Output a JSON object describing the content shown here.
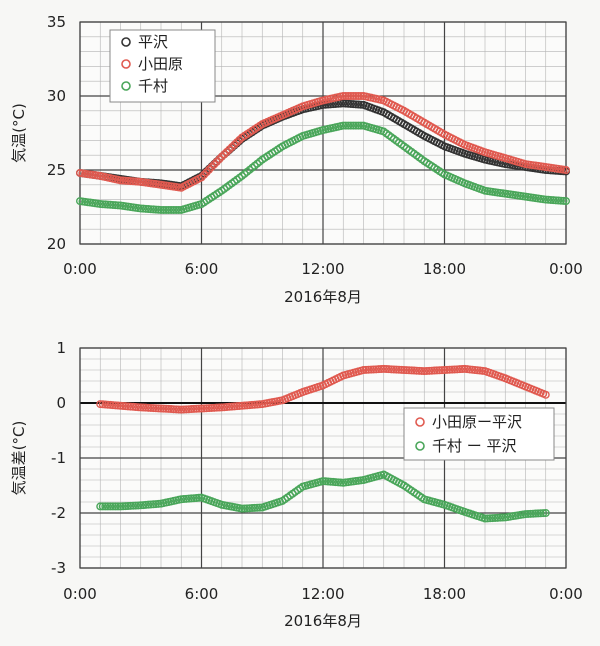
{
  "chart_data": [
    {
      "type": "scatter",
      "title": "",
      "xlabel": "2016年8月",
      "ylabel": "気温(°C)",
      "xlim": [
        0,
        24
      ],
      "ylim": [
        20,
        35
      ],
      "x_ticks": [
        0,
        6,
        12,
        18,
        24
      ],
      "x_tick_labels": [
        "0:00",
        "6:00",
        "12:00",
        "18:00",
        "0:00"
      ],
      "y_ticks": [
        20,
        25,
        30,
        35
      ],
      "y_tick_labels": [
        "20",
        "25",
        "30",
        "35"
      ],
      "grid": true,
      "legend_position": "top-left",
      "series": [
        {
          "name": "平沢",
          "color": "#333333",
          "x": [
            0,
            1,
            2,
            3,
            4,
            5,
            6,
            7,
            8,
            9,
            10,
            11,
            12,
            13,
            14,
            15,
            16,
            17,
            18,
            19,
            20,
            21,
            22,
            23,
            24
          ],
          "y": [
            24.8,
            24.6,
            24.4,
            24.2,
            24.1,
            23.9,
            24.6,
            25.9,
            27.1,
            28.0,
            28.6,
            29.1,
            29.4,
            29.5,
            29.4,
            28.9,
            28.1,
            27.3,
            26.6,
            26.1,
            25.7,
            25.4,
            25.2,
            25.0,
            24.9
          ]
        },
        {
          "name": "小田原",
          "color": "#e05a50",
          "x": [
            0,
            1,
            2,
            3,
            4,
            5,
            6,
            7,
            8,
            9,
            10,
            11,
            12,
            13,
            14,
            15,
            16,
            17,
            18,
            19,
            20,
            21,
            22,
            23,
            24
          ],
          "y": [
            24.8,
            24.6,
            24.3,
            24.2,
            24.0,
            23.8,
            24.5,
            25.9,
            27.2,
            28.1,
            28.7,
            29.3,
            29.7,
            30.0,
            30.0,
            29.7,
            29.0,
            28.2,
            27.4,
            26.7,
            26.2,
            25.8,
            25.4,
            25.2,
            25.0
          ]
        },
        {
          "name": "千村",
          "color": "#4aa65a",
          "x": [
            0,
            1,
            2,
            3,
            4,
            5,
            6,
            7,
            8,
            9,
            10,
            11,
            12,
            13,
            14,
            15,
            16,
            17,
            18,
            19,
            20,
            21,
            22,
            23,
            24
          ],
          "y": [
            22.9,
            22.7,
            22.6,
            22.4,
            22.3,
            22.3,
            22.7,
            23.6,
            24.6,
            25.7,
            26.6,
            27.3,
            27.7,
            28.0,
            28.0,
            27.6,
            26.6,
            25.6,
            24.7,
            24.1,
            23.6,
            23.4,
            23.2,
            23.0,
            22.9
          ]
        }
      ]
    },
    {
      "type": "scatter",
      "title": "",
      "xlabel": "2016年8月",
      "ylabel": "気温差(°C)",
      "xlim": [
        0,
        24
      ],
      "ylim": [
        -3,
        1
      ],
      "x_ticks": [
        0,
        6,
        12,
        18,
        24
      ],
      "x_tick_labels": [
        "0:00",
        "6:00",
        "12:00",
        "18:00",
        "0:00"
      ],
      "y_ticks": [
        -3,
        -2,
        -1,
        0,
        1
      ],
      "y_tick_labels": [
        "-3",
        "-2",
        "-1",
        "0",
        "1"
      ],
      "grid": true,
      "legend_position": "right",
      "series": [
        {
          "name": "小田原ー平沢",
          "color": "#e05a50",
          "x": [
            1,
            2,
            3,
            4,
            5,
            6,
            7,
            8,
            9,
            10,
            11,
            12,
            13,
            14,
            15,
            16,
            17,
            18,
            19,
            20,
            21,
            22,
            23
          ],
          "y": [
            -0.02,
            -0.05,
            -0.08,
            -0.1,
            -0.12,
            -0.1,
            -0.08,
            -0.05,
            -0.02,
            0.05,
            0.2,
            0.32,
            0.5,
            0.6,
            0.62,
            0.6,
            0.58,
            0.6,
            0.62,
            0.58,
            0.45,
            0.3,
            0.15
          ]
        },
        {
          "name": "千村 ー 平沢",
          "color": "#4aa65a",
          "x": [
            1,
            2,
            3,
            4,
            5,
            6,
            7,
            8,
            9,
            10,
            11,
            12,
            13,
            14,
            15,
            16,
            17,
            18,
            19,
            20,
            21,
            22,
            23
          ],
          "y": [
            -1.88,
            -1.88,
            -1.86,
            -1.83,
            -1.75,
            -1.72,
            -1.85,
            -1.92,
            -1.9,
            -1.78,
            -1.52,
            -1.42,
            -1.45,
            -1.4,
            -1.3,
            -1.5,
            -1.75,
            -1.85,
            -1.98,
            -2.1,
            -2.08,
            -2.02,
            -2.0
          ]
        }
      ]
    }
  ]
}
